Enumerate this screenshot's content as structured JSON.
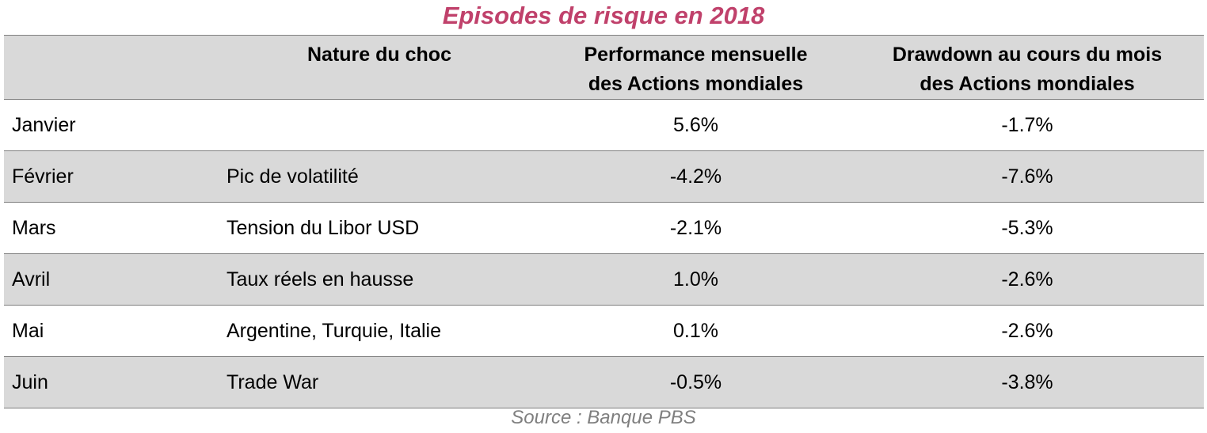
{
  "chart_data": {
    "type": "table",
    "title": "Episodes de risque en 2018",
    "columns": [
      "",
      "Nature du choc",
      "Performance mensuelle des Actions mondiales",
      "Drawdown au cours du mois des Actions mondiales"
    ],
    "columns_lines": [
      [
        ""
      ],
      [
        "Nature du choc"
      ],
      [
        "Performance mensuelle",
        "des Actions mondiales"
      ],
      [
        "Drawdown au cours du mois",
        "des Actions mondiales"
      ]
    ],
    "rows": [
      {
        "month": "Janvier",
        "nature": "",
        "performance": "5.6%",
        "drawdown": "-1.7%"
      },
      {
        "month": "Février",
        "nature": "Pic de volatilité",
        "performance": "-4.2%",
        "drawdown": "-7.6%"
      },
      {
        "month": "Mars",
        "nature": "Tension du Libor USD",
        "performance": "-2.1%",
        "drawdown": "-5.3%"
      },
      {
        "month": "Avril",
        "nature": "Taux réels en hausse",
        "performance": "1.0%",
        "drawdown": "-2.6%"
      },
      {
        "month": "Mai",
        "nature": "Argentine, Turquie, Italie",
        "performance": "0.1%",
        "drawdown": "-2.6%"
      },
      {
        "month": "Juin",
        "nature": "Trade War",
        "performance": "-0.5%",
        "drawdown": "-3.8%"
      }
    ],
    "performance_values": [
      5.6,
      -4.2,
      -2.1,
      1.0,
      0.1,
      -0.5
    ],
    "drawdown_values": [
      -1.7,
      -7.6,
      -5.3,
      -2.6,
      -2.6,
      -3.8
    ],
    "unit": "%",
    "source": "Source : Banque PBS"
  },
  "colors": {
    "title": "#c0416b",
    "header_bg": "#d9d9d9",
    "shaded_row_bg": "#d9d9d9",
    "rule": "#7f7f7f",
    "source": "#7f7f7f"
  }
}
